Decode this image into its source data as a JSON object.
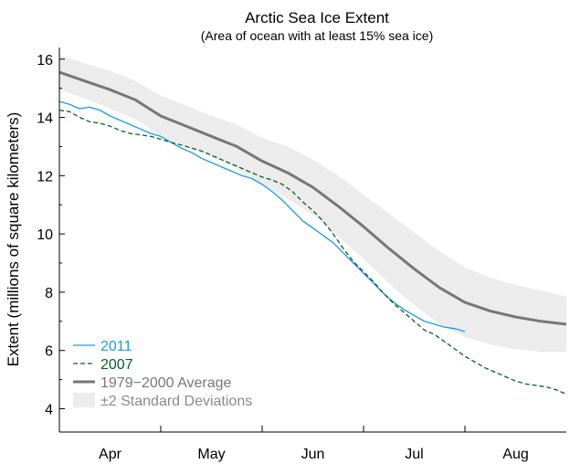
{
  "chart_data": {
    "type": "line",
    "title": "Arctic Sea Ice Extent",
    "subtitle": "(Area of ocean with at least 15% sea ice)",
    "ylabel": "Extent (millions of square kilometers)",
    "xlabel": "",
    "ylim": [
      3.2,
      16.4
    ],
    "yticks": [
      4,
      6,
      8,
      10,
      12,
      14,
      16
    ],
    "xlim": [
      0,
      5
    ],
    "month_labels": [
      "Apr",
      "May",
      "Jun",
      "Jul",
      "Aug"
    ],
    "grid": false,
    "legend_position": "bottom-left",
    "series": [
      {
        "name": "2011",
        "style": "solid",
        "color": "#1a9be0",
        "x": [
          0.0,
          0.1,
          0.2,
          0.3,
          0.4,
          0.5,
          0.6,
          0.7,
          0.8,
          0.9,
          1.0,
          1.1,
          1.2,
          1.3,
          1.4,
          1.5,
          1.6,
          1.7,
          1.8,
          1.9,
          2.0,
          2.1,
          2.2,
          2.3,
          2.4,
          2.5,
          2.6,
          2.7,
          2.8,
          2.9,
          3.0,
          3.1,
          3.2,
          3.3,
          3.4,
          3.5,
          3.6,
          3.7,
          3.8,
          3.9,
          4.0
        ],
        "values": [
          14.55,
          14.45,
          14.3,
          14.35,
          14.25,
          14.05,
          13.9,
          13.75,
          13.6,
          13.45,
          13.35,
          13.15,
          12.95,
          12.8,
          12.6,
          12.45,
          12.3,
          12.15,
          12.0,
          11.9,
          11.7,
          11.45,
          11.15,
          10.8,
          10.45,
          10.2,
          9.95,
          9.7,
          9.35,
          9.0,
          8.65,
          8.3,
          7.95,
          7.65,
          7.4,
          7.2,
          7.0,
          6.9,
          6.8,
          6.75,
          6.65
        ]
      },
      {
        "name": "2007",
        "style": "dashed",
        "color": "#0b5e2a",
        "x": [
          0.0,
          0.1,
          0.2,
          0.3,
          0.4,
          0.5,
          0.6,
          0.7,
          0.8,
          0.9,
          1.0,
          1.1,
          1.2,
          1.3,
          1.4,
          1.5,
          1.6,
          1.7,
          1.8,
          1.9,
          2.0,
          2.1,
          2.2,
          2.3,
          2.4,
          2.5,
          2.6,
          2.7,
          2.8,
          2.9,
          3.0,
          3.1,
          3.2,
          3.3,
          3.4,
          3.5,
          3.6,
          3.7,
          3.8,
          3.9,
          4.0,
          4.1,
          4.2,
          4.3,
          4.4,
          4.5,
          4.6,
          4.7,
          4.8,
          4.9,
          5.0
        ],
        "values": [
          14.25,
          14.2,
          14.0,
          13.85,
          13.8,
          13.7,
          13.55,
          13.45,
          13.4,
          13.35,
          13.25,
          13.15,
          13.05,
          12.95,
          12.85,
          12.7,
          12.55,
          12.4,
          12.25,
          12.1,
          11.95,
          11.85,
          11.7,
          11.45,
          11.1,
          10.8,
          10.45,
          10.0,
          9.5,
          9.05,
          8.7,
          8.35,
          7.95,
          7.6,
          7.3,
          7.0,
          6.7,
          6.55,
          6.3,
          6.05,
          5.8,
          5.6,
          5.4,
          5.25,
          5.1,
          4.95,
          4.85,
          4.8,
          4.75,
          4.65,
          4.5
        ]
      },
      {
        "name": "1979−2000 Average",
        "style": "solid",
        "color": "#777777",
        "x": [
          0.0,
          0.25,
          0.5,
          0.75,
          1.0,
          1.25,
          1.5,
          1.75,
          2.0,
          2.25,
          2.5,
          2.75,
          3.0,
          3.25,
          3.5,
          3.75,
          4.0,
          4.25,
          4.5,
          4.75,
          5.0
        ],
        "values": [
          15.55,
          15.25,
          14.95,
          14.6,
          14.05,
          13.7,
          13.35,
          13.0,
          12.5,
          12.1,
          11.6,
          10.95,
          10.25,
          9.5,
          8.8,
          8.15,
          7.65,
          7.35,
          7.15,
          7.0,
          6.9
        ]
      },
      {
        "name": "±2 Standard Deviations",
        "style": "band",
        "color": "#ececec",
        "x": [
          0.0,
          0.25,
          0.5,
          0.75,
          1.0,
          1.25,
          1.5,
          1.75,
          2.0,
          2.25,
          2.5,
          2.75,
          3.0,
          3.25,
          3.5,
          3.75,
          4.0,
          4.25,
          4.5,
          4.75,
          5.0
        ],
        "upper": [
          16.15,
          15.85,
          15.6,
          15.25,
          14.75,
          14.4,
          14.05,
          13.75,
          13.3,
          13.0,
          12.55,
          12.0,
          11.35,
          10.7,
          10.05,
          9.4,
          8.85,
          8.5,
          8.25,
          8.05,
          7.85
        ],
        "lower": [
          14.95,
          14.65,
          14.3,
          13.95,
          13.35,
          13.0,
          12.65,
          12.25,
          11.7,
          11.2,
          10.65,
          9.9,
          9.15,
          8.3,
          7.55,
          6.9,
          6.45,
          6.2,
          6.05,
          5.95,
          5.95
        ]
      }
    ]
  }
}
